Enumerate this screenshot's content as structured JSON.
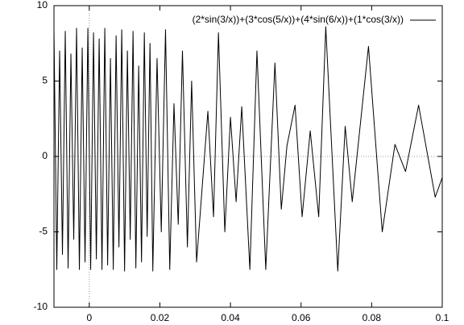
{
  "chart_data": {
    "type": "line",
    "x": [
      -0.01,
      -0.0092,
      -0.0084,
      -0.0076,
      -0.0068,
      -0.006,
      -0.0052,
      -0.0044,
      -0.0036,
      -0.0028,
      -0.002,
      -0.0012,
      -0.0004,
      0.0004,
      0.0012,
      0.002,
      0.0028,
      0.0036,
      0.0044,
      0.0052,
      0.006,
      0.0068,
      0.0076,
      0.0084,
      0.0092,
      0.01,
      0.0108,
      0.0116,
      0.0124,
      0.0132,
      0.014,
      0.0148,
      0.0156,
      0.0164,
      0.0172,
      0.018,
      0.0192,
      0.0204,
      0.0216,
      0.0228,
      0.024,
      0.0252,
      0.0264,
      0.0278,
      0.029,
      0.0304,
      0.0336,
      0.0352,
      0.0366,
      0.0384,
      0.04,
      0.0416,
      0.0432,
      0.0455,
      0.0475,
      0.05,
      0.0526,
      0.0544,
      0.056,
      0.0583,
      0.0603,
      0.0626,
      0.065,
      0.067,
      0.0704,
      0.0725,
      0.0745,
      0.0791,
      0.083,
      0.0866,
      0.0896,
      0.0933,
      0.098,
      0.1
    ],
    "series": [
      {
        "name": "(2*sin(3/x))+(3*cos(5/x))+(4*sin(6/x))+(1*cos(3/x))",
        "color": "#000000",
        "values": [
          8.4,
          -7.5,
          7.0,
          -6.5,
          8.3,
          -7.4,
          6.8,
          -5.5,
          8.5,
          -7.5,
          7.2,
          -7.0,
          8.5,
          -7.5,
          8.2,
          -6.8,
          7.8,
          -7.5,
          8.5,
          -7.2,
          6.5,
          -7.5,
          8.0,
          -6.0,
          8.4,
          -7.6,
          7.0,
          -5.5,
          8.3,
          -7.4,
          6.0,
          -7.0,
          8.2,
          -5.3,
          7.5,
          -7.6,
          6.5,
          -5.0,
          8.4,
          -7.5,
          3.5,
          -4.5,
          7.0,
          -6.0,
          5.0,
          -7.0,
          3.0,
          -4.0,
          8.2,
          -5.0,
          2.6,
          -3.0,
          3.3,
          -7.5,
          7.0,
          -7.5,
          6.2,
          -3.5,
          0.7,
          3.4,
          -4.0,
          1.7,
          -4.0,
          8.6,
          -7.6,
          2.0,
          -3.0,
          7.3,
          -5.0,
          0.8,
          -1.0,
          3.4,
          -2.7,
          -1.4
        ]
      }
    ],
    "xlim": [
      -0.01,
      0.1
    ],
    "xticks": [
      0,
      0.02,
      0.04,
      0.06,
      0.08,
      0.1
    ],
    "ylim": [
      -10,
      10
    ],
    "yticks": [
      -10,
      -5,
      0,
      5,
      10
    ],
    "zeroaxis": true,
    "legend": "top-right"
  }
}
